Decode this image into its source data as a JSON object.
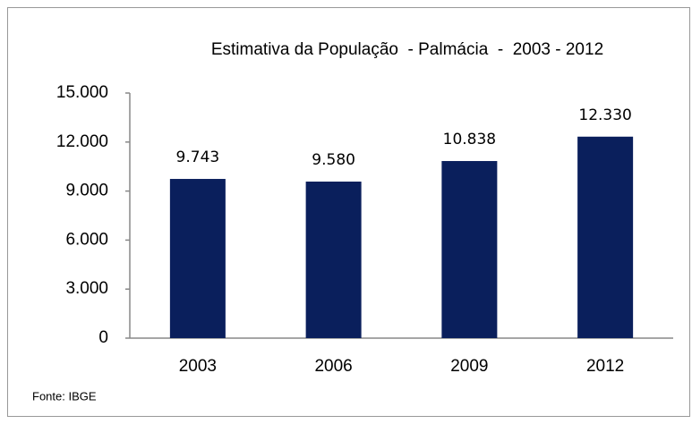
{
  "chart_data": {
    "type": "bar",
    "title": "Estimativa da População  - Palmácia  -  2003 - 2012",
    "categories": [
      "2003",
      "2006",
      "2009",
      "2012"
    ],
    "values": [
      9743,
      9580,
      10838,
      12330
    ],
    "value_labels": [
      "9.743",
      "9.580",
      "10.838",
      "12.330"
    ],
    "color": "#0a1f5c",
    "ylim": [
      0,
      15000
    ],
    "yticks": [
      0,
      {
        "value": 3000,
        "label": "3.000"
      },
      {
        "value": 6000,
        "label": "6.000"
      },
      {
        "value": 9000,
        "label": "9.000"
      },
      {
        "value": 12000,
        "label": "12.000"
      },
      {
        "value": 15000,
        "label": "15.000"
      }
    ],
    "grid": false,
    "source": "Fonte: IBGE"
  }
}
